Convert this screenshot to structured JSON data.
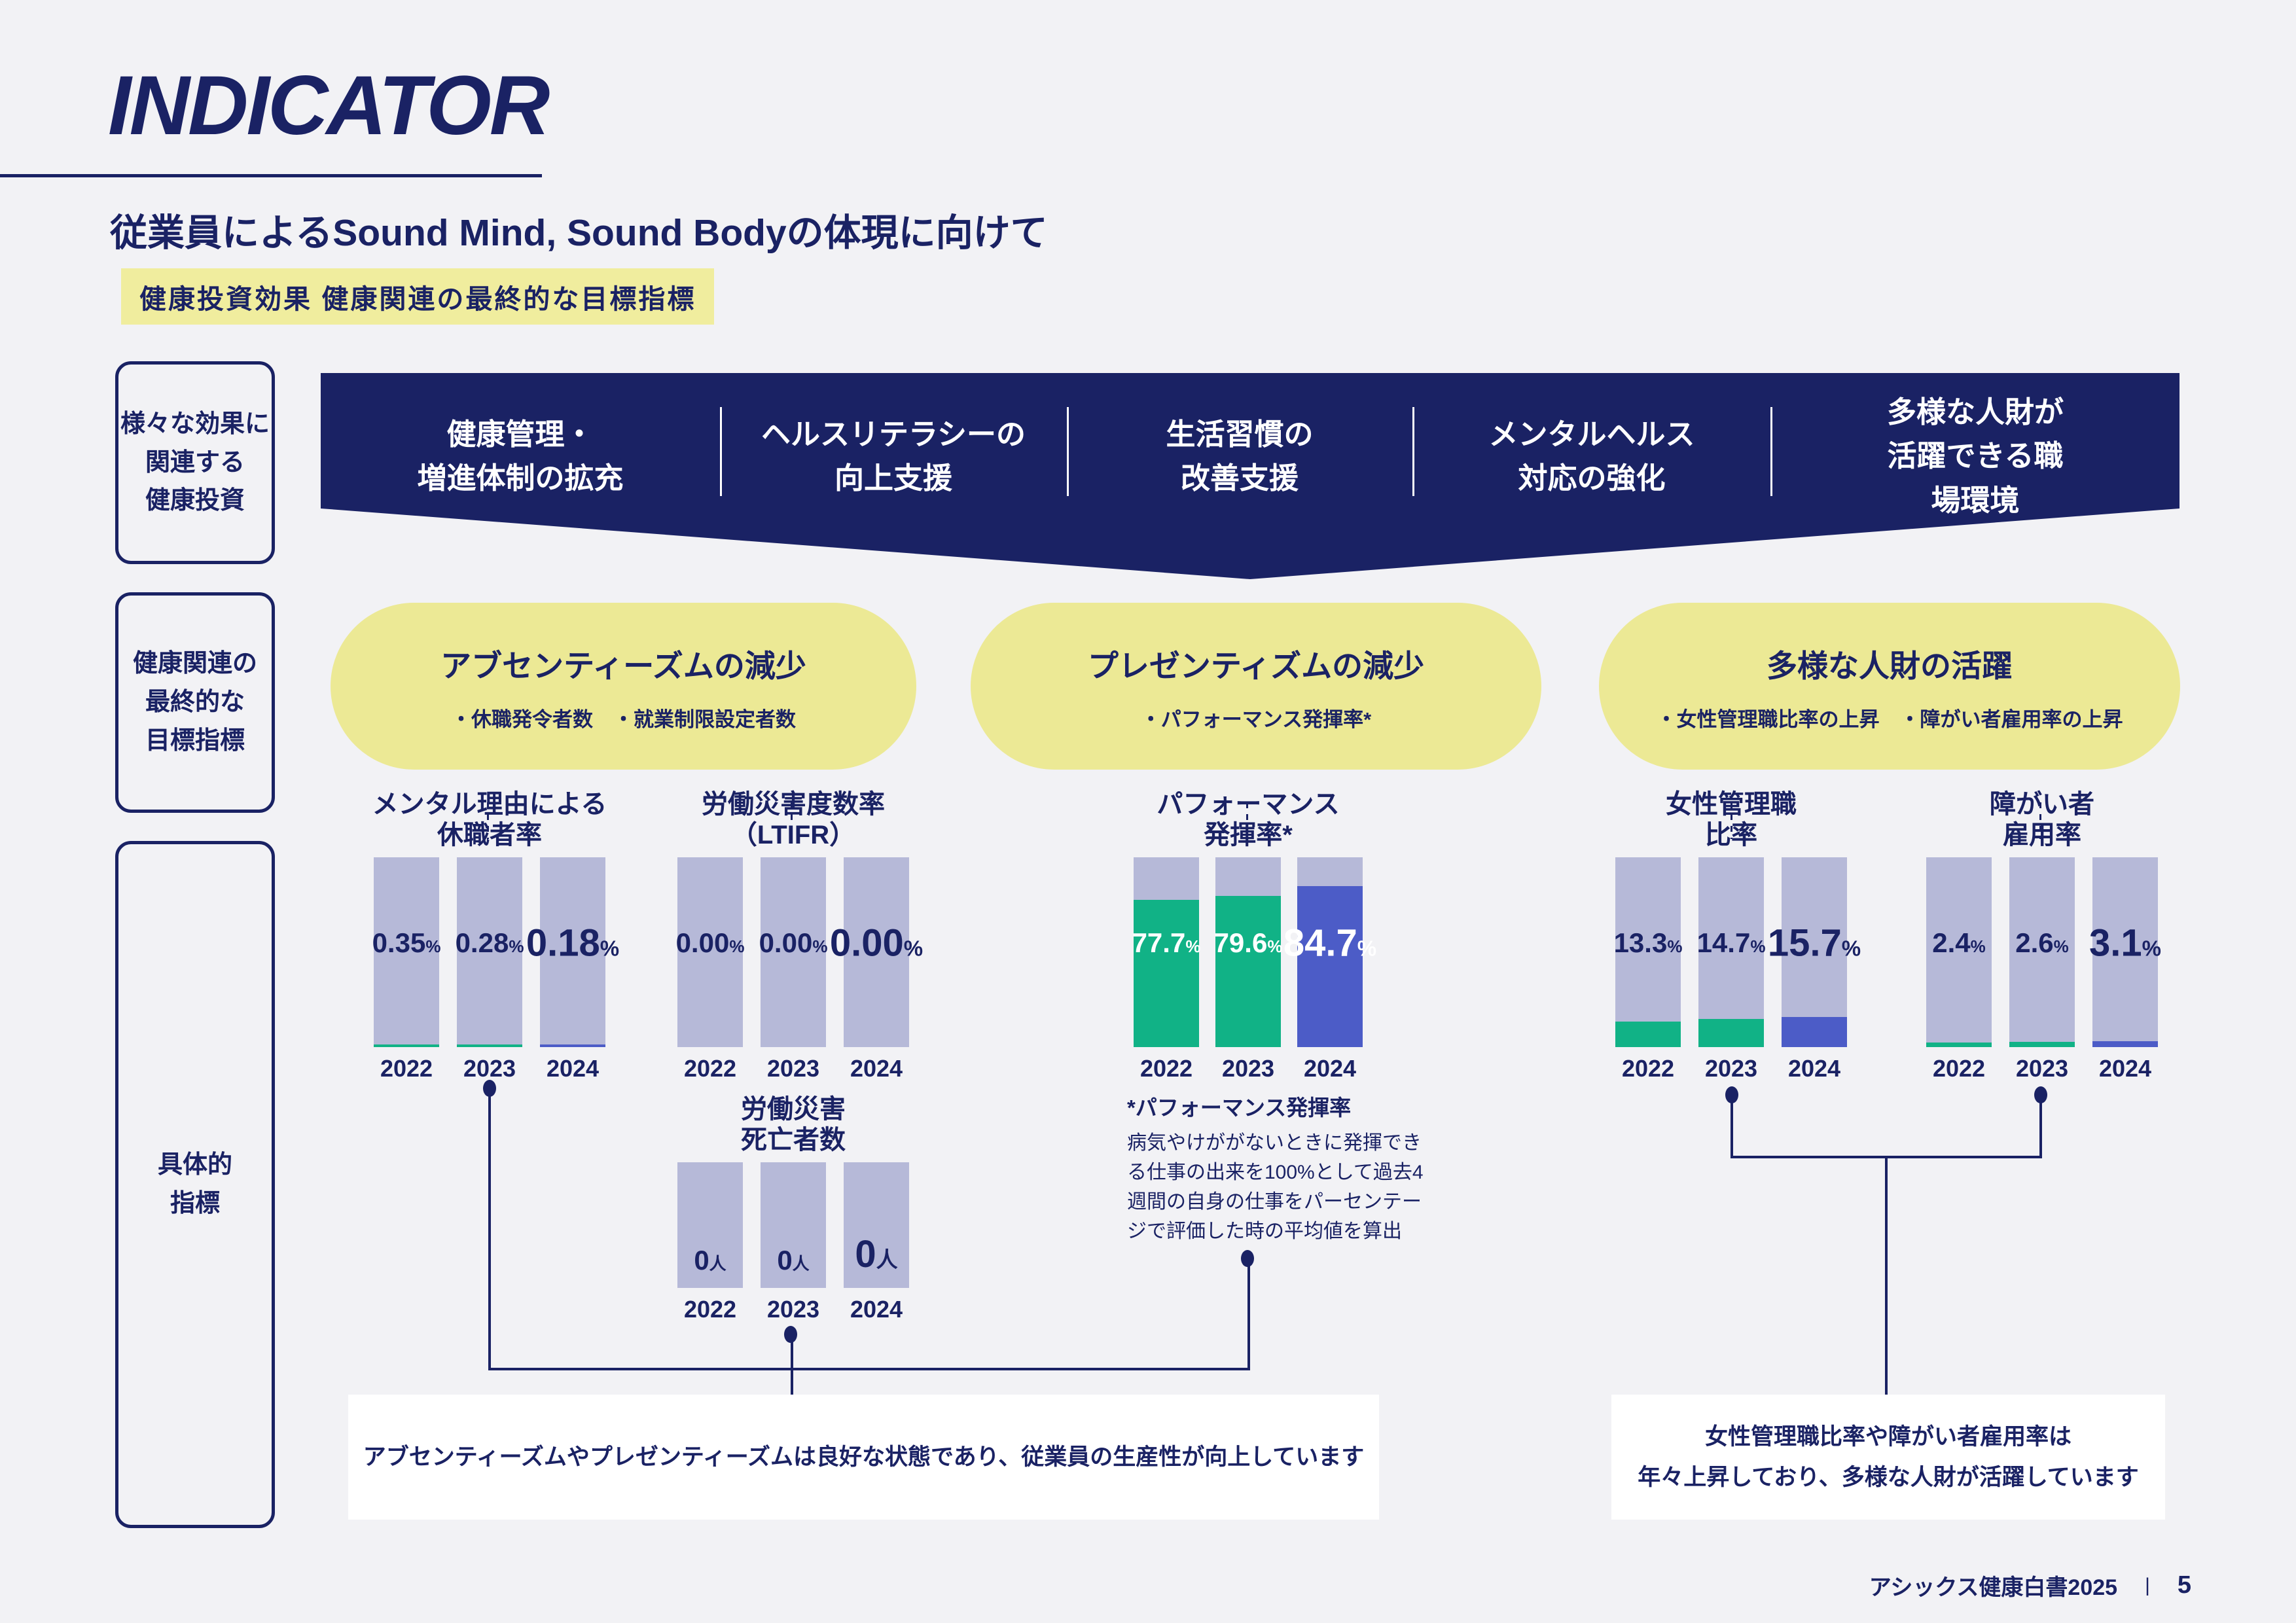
{
  "colors": {
    "navy": "#1a2264",
    "background": "#f2f2f5",
    "yellow_tag": "#f0ed9e",
    "yellow_goal": "#ece995",
    "bar_base": "#b6b9d8",
    "green": "#11b286",
    "indigo": "#4c5cc7",
    "white": "#ffffff"
  },
  "header": {
    "title": "INDICATOR",
    "subtitle": "従業員によるSound Mind, Sound Bodyの体現に向けて",
    "tag": "健康投資効果 健康関連の最終的な目標指標"
  },
  "sidebar": {
    "items": [
      {
        "label": "様々な効果に\n関連する\n健康投資"
      },
      {
        "label": "健康関連の\n最終的な\n目標指標"
      },
      {
        "label": "具体的\n指標"
      }
    ]
  },
  "banner": {
    "items": [
      {
        "label": "健康管理・\n増進体制の拡充"
      },
      {
        "label": "ヘルスリテラシーの\n向上支援"
      },
      {
        "label": "生活習慣の\n改善支援"
      },
      {
        "label": "メンタルヘルス\n対応の強化"
      },
      {
        "label": "多様な人財が\n活躍できる職場環境"
      }
    ]
  },
  "goals": [
    {
      "title": "アブセンティーズムの減少",
      "sub": "・休職発令者数　・就業制限設定者数"
    },
    {
      "title": "プレゼンティズムの減少",
      "sub": "・パフォーマンス発揮率*"
    },
    {
      "title": "多様な人財の活躍",
      "sub": "・女性管理職比率の上昇　・障がい者雇用率の上昇"
    }
  ],
  "chart_data": [
    {
      "id": "mental-leave-rate",
      "type": "bar",
      "title": "メンタル理由による\n休職者率",
      "categories": [
        "2022",
        "2023",
        "2024"
      ],
      "values": [
        0.35,
        0.28,
        0.18
      ],
      "value_labels": [
        "0.35",
        "0.28",
        "0.18"
      ],
      "unit": "%",
      "ylim": [
        0,
        100
      ],
      "bar_fill_colors": [
        "#11b286",
        "#11b286",
        "#4c5cc7"
      ],
      "label_style": "navy-middle"
    },
    {
      "id": "ltifr",
      "type": "bar",
      "title": "労働災害度数率\n（LTIFR）",
      "categories": [
        "2022",
        "2023",
        "2024"
      ],
      "values": [
        0,
        0,
        0
      ],
      "value_labels": [
        "0.00",
        "0.00",
        "0.00"
      ],
      "unit": "%",
      "ylim": [
        0,
        100
      ],
      "bar_fill_colors": [
        "none",
        "none",
        "none"
      ],
      "label_style": "navy-middle"
    },
    {
      "id": "performance-rate",
      "type": "bar",
      "title": "パフォーマンス\n発揮率*",
      "categories": [
        "2022",
        "2023",
        "2024"
      ],
      "values": [
        77.7,
        79.6,
        84.7
      ],
      "value_labels": [
        "77.7",
        "79.6",
        "84.7"
      ],
      "unit": "%",
      "ylim": [
        0,
        100
      ],
      "bar_fill_colors": [
        "#11b286",
        "#11b286",
        "#4c5cc7"
      ],
      "label_style": "white-middle"
    },
    {
      "id": "female-manager-rate",
      "type": "bar",
      "title": "女性管理職\n比率",
      "categories": [
        "2022",
        "2023",
        "2024"
      ],
      "values": [
        13.3,
        14.7,
        15.7
      ],
      "value_labels": [
        "13.3",
        "14.7",
        "15.7"
      ],
      "unit": "%",
      "ylim": [
        0,
        100
      ],
      "bar_fill_colors": [
        "#11b286",
        "#11b286",
        "#4c5cc7"
      ],
      "label_style": "navy-middle"
    },
    {
      "id": "disability-employment-rate",
      "type": "bar",
      "title": "障がい者\n雇用率",
      "categories": [
        "2022",
        "2023",
        "2024"
      ],
      "values": [
        2.4,
        2.6,
        3.1
      ],
      "value_labels": [
        "2.4",
        "2.6",
        "3.1"
      ],
      "unit": "%",
      "ylim": [
        0,
        100
      ],
      "bar_fill_colors": [
        "#11b286",
        "#11b286",
        "#4c5cc7"
      ],
      "label_style": "navy-middle"
    },
    {
      "id": "fatal-accidents",
      "type": "bar",
      "title": "労働災害\n死亡者数",
      "categories": [
        "2022",
        "2023",
        "2024"
      ],
      "values": [
        0,
        0,
        0
      ],
      "value_labels": [
        "0",
        "0",
        "0"
      ],
      "unit": "人",
      "bar_fill_colors": [
        "none",
        "none",
        "none"
      ],
      "label_style": "navy-bottom"
    }
  ],
  "footnote": {
    "title": "*パフォーマンス発揮率",
    "body": "病気やけががないときに発揮でき\nる仕事の出来を100%として過去4\n週間の自身の仕事をパーセンテー\nジで評価した時の平均値を算出"
  },
  "callouts": {
    "left": "アブセンティーズムやプレゼンティーズムは良好な状態であり、従業員の生産性が向上しています",
    "right": "女性管理職比率や障がい者雇用率は\n年々上昇しており、多様な人財が活躍しています"
  },
  "footer": {
    "doc": "アシックス健康白書2025",
    "separator": "|",
    "page": "5"
  }
}
